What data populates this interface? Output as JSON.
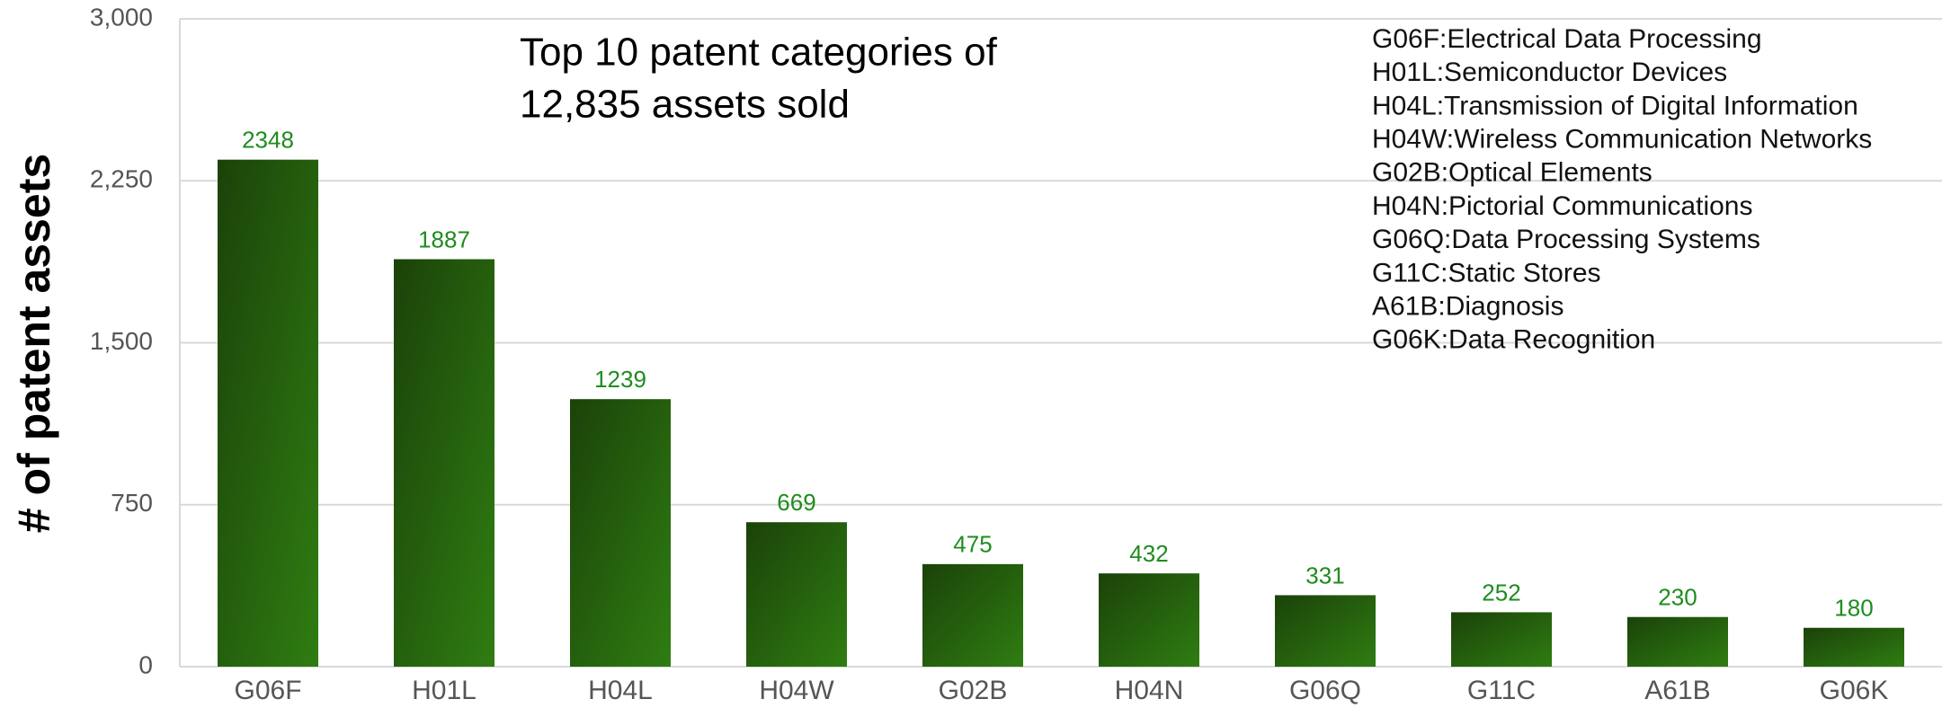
{
  "chart_data": {
    "type": "bar",
    "title": [
      "Top 10 patent categories of",
      "12,835 assets sold"
    ],
    "y_label": "# of patent assets",
    "categories": [
      "G06F",
      "H01L",
      "H04L",
      "H04W",
      "G02B",
      "H04N",
      "G06Q",
      "G11C",
      "A61B",
      "G06K"
    ],
    "values": [
      2348,
      1887,
      1239,
      669,
      475,
      432,
      331,
      252,
      230,
      180
    ],
    "legend_notes": [
      "G06F:Electrical Data Processing",
      "H01L:Semiconductor Devices",
      "H04L:Transmission of Digital Information",
      "H04W:Wireless Communication Networks",
      "G02B:Optical Elements",
      "H04N:Pictorial Communications",
      "G06Q:Data Processing Systems",
      "G11C:Static Stores",
      "A61B:Diagnosis",
      "G06K:Data Recognition"
    ],
    "gradient": [
      "#1b4209",
      "#2f7d12"
    ],
    "value_label_color": "#1e8c1e",
    "ylim": [
      0,
      3000
    ],
    "yticks": [
      0,
      750,
      {
        "value": 1500,
        "label": "1,500"
      },
      {
        "value": 2250,
        "label": "2,250"
      },
      {
        "value": 3000,
        "label": "3,000"
      }
    ],
    "grid": true
  }
}
